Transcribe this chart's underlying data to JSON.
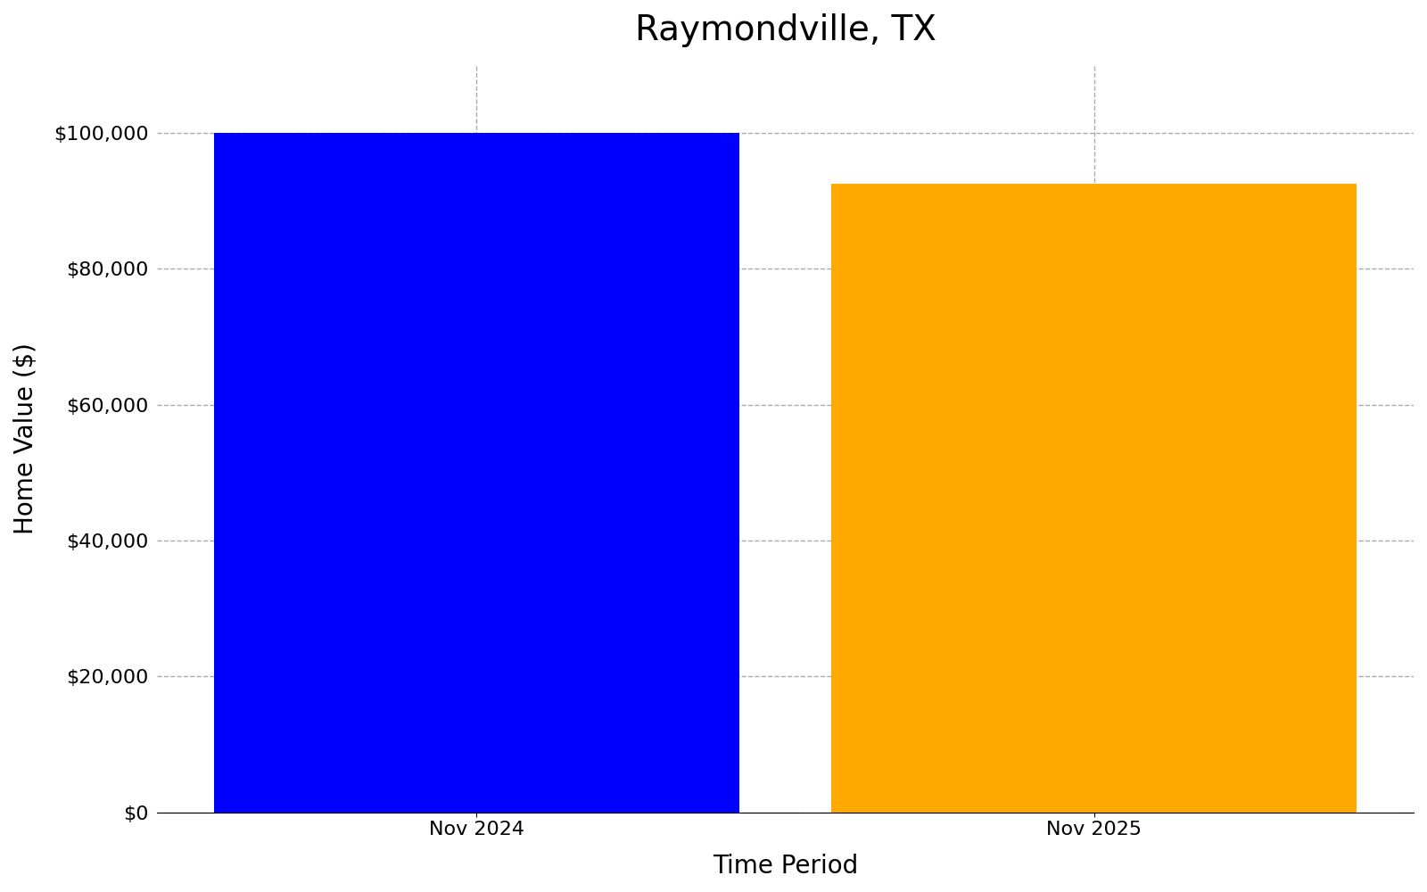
{
  "title": "Raymondville, TX",
  "categories": [
    "Nov 2024",
    "Nov 2025"
  ],
  "values": [
    100000,
    92500
  ],
  "bar_colors": [
    "#0000ff",
    "#ffaa00"
  ],
  "xlabel": "Time Period",
  "ylabel": "Home Value ($)",
  "ylim": [
    0,
    110000
  ],
  "yticks": [
    0,
    20000,
    40000,
    60000,
    80000,
    100000
  ],
  "title_fontsize": 28,
  "axis_label_fontsize": 20,
  "tick_fontsize": 16,
  "bar_width": 0.85,
  "background_color": "#ffffff",
  "grid_color": "#aaaaaa",
  "grid_linestyle": "--",
  "grid_linewidth": 1.0
}
